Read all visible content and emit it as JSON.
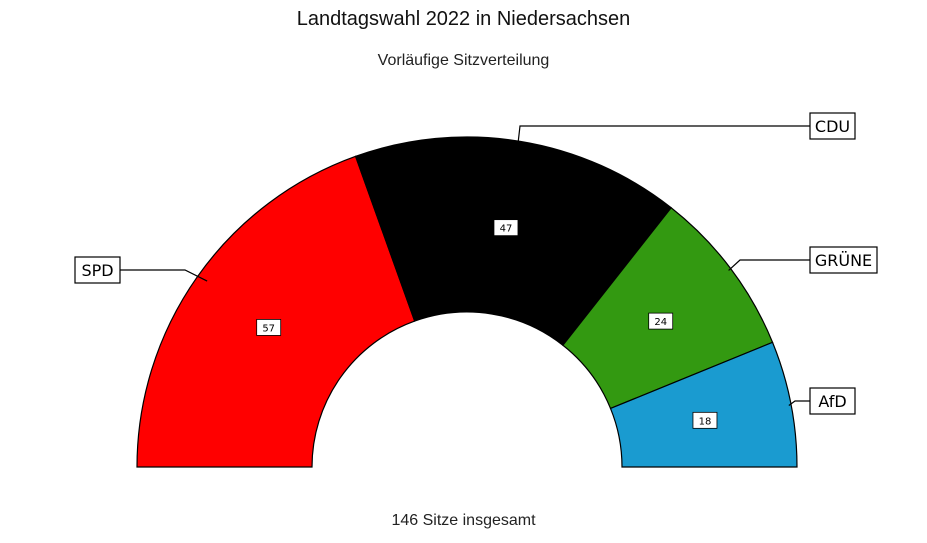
{
  "chart_data": {
    "type": "pie",
    "subtype": "parliament-semicircle",
    "title": "Landtagswahl 2022 in Niedersachsen",
    "subtitle": "Vorläufige Sitzverteilung",
    "footer": "146 Sitze insgesamt",
    "total": 146,
    "series": [
      {
        "name": "SPD",
        "value": 57,
        "color": "#ff0000"
      },
      {
        "name": "CDU",
        "value": 47,
        "color": "#000000"
      },
      {
        "name": "GRÜNE",
        "value": 24,
        "color": "#339911"
      },
      {
        "name": "AfD",
        "value": 18,
        "color": "#1a9bd0"
      }
    ]
  }
}
